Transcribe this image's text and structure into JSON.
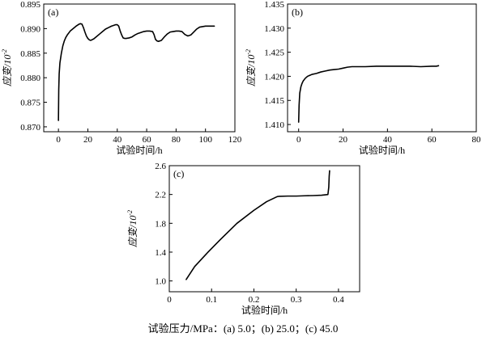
{
  "caption": "试验压力/MPa：(a) 5.0；(b) 25.0；(c) 45.0",
  "chart_data": [
    {
      "panel": "(a)",
      "type": "line",
      "xlabel": "试验时间/h",
      "ylabel": "应变/10",
      "ylabel_sup": "-2",
      "xlim": [
        -10,
        120
      ],
      "ylim": [
        0.869,
        0.895
      ],
      "xticks": [
        0,
        20,
        40,
        60,
        80,
        100,
        120
      ],
      "yticks": [
        0.87,
        0.875,
        0.88,
        0.885,
        0.89,
        0.895
      ],
      "ytick_decimals": 3,
      "grid": false,
      "series": [
        {
          "x": [
            0,
            0.2,
            0.5,
            1,
            2,
            3,
            4,
            5,
            6,
            8,
            10,
            12,
            14,
            15,
            16,
            17,
            18,
            19,
            20,
            21,
            22,
            24,
            26,
            28,
            30,
            32,
            34,
            36,
            38,
            39,
            40,
            41,
            42,
            43,
            44,
            45,
            46,
            48,
            50,
            52,
            54,
            56,
            58,
            60,
            62,
            64,
            65,
            66,
            67,
            68,
            70,
            72,
            74,
            76,
            78,
            80,
            82,
            84,
            86,
            88,
            90,
            92,
            94,
            96,
            98,
            100,
            102,
            104,
            106
          ],
          "y": [
            0.8713,
            0.8775,
            0.8808,
            0.883,
            0.885,
            0.8865,
            0.8875,
            0.8882,
            0.8887,
            0.8895,
            0.89,
            0.8905,
            0.8909,
            0.891,
            0.8909,
            0.8902,
            0.8893,
            0.8885,
            0.888,
            0.8877,
            0.8876,
            0.8879,
            0.8884,
            0.8889,
            0.8894,
            0.8899,
            0.8902,
            0.8905,
            0.8907,
            0.8908,
            0.8908,
            0.8905,
            0.8895,
            0.8887,
            0.8881,
            0.888,
            0.888,
            0.8881,
            0.8883,
            0.8887,
            0.889,
            0.8892,
            0.8894,
            0.8895,
            0.8895,
            0.8894,
            0.8888,
            0.8878,
            0.8875,
            0.8874,
            0.8876,
            0.8883,
            0.8889,
            0.8893,
            0.8894,
            0.8895,
            0.8895,
            0.8894,
            0.8888,
            0.8885,
            0.8887,
            0.8893,
            0.8899,
            0.8903,
            0.8904,
            0.8905,
            0.8905,
            0.8905,
            0.8905
          ]
        }
      ]
    },
    {
      "panel": "(b)",
      "type": "line",
      "xlabel": "试验时间/h",
      "ylabel": "应变/10",
      "ylabel_sup": "-2",
      "xlim": [
        -5,
        80
      ],
      "ylim": [
        1.4085,
        1.435
      ],
      "xticks": [
        0,
        20,
        40,
        60,
        80
      ],
      "yticks": [
        1.41,
        1.415,
        1.42,
        1.425,
        1.43,
        1.435
      ],
      "ytick_decimals": 3,
      "grid": false,
      "series": [
        {
          "x": [
            0,
            0.2,
            0.5,
            1,
            1.5,
            2,
            3,
            4,
            5,
            6,
            8,
            10,
            12,
            14,
            16,
            18,
            20,
            22,
            24,
            26,
            30,
            35,
            40,
            45,
            50,
            55,
            60,
            62,
            63
          ],
          "y": [
            1.4105,
            1.414,
            1.4165,
            1.4178,
            1.4185,
            1.419,
            1.4196,
            1.42,
            1.4202,
            1.4204,
            1.4206,
            1.4209,
            1.4211,
            1.4213,
            1.4214,
            1.4215,
            1.4217,
            1.4219,
            1.422,
            1.422,
            1.422,
            1.4221,
            1.4221,
            1.4221,
            1.4221,
            1.422,
            1.4221,
            1.4221,
            1.4222
          ]
        }
      ]
    },
    {
      "panel": "(c)",
      "type": "line",
      "xlabel": "试验时间/h",
      "ylabel": "应变/10",
      "ylabel_sup": "-2",
      "xlim": [
        0,
        0.45
      ],
      "ylim": [
        0.85,
        2.6
      ],
      "xticks": [
        0,
        0.1,
        0.2,
        0.3,
        0.4
      ],
      "xtick_labels": [
        "0",
        "0.1",
        "0.2",
        "0.3",
        "0.4"
      ],
      "yticks": [
        1.0,
        1.4,
        1.8,
        2.2,
        2.6
      ],
      "ytick_decimals": 1,
      "grid": false,
      "series": [
        {
          "x": [
            0.04,
            0.06,
            0.09,
            0.12,
            0.16,
            0.2,
            0.23,
            0.255,
            0.26,
            0.28,
            0.3,
            0.32,
            0.34,
            0.36,
            0.375,
            0.377,
            0.378,
            0.379
          ],
          "y": [
            1.02,
            1.2,
            1.39,
            1.57,
            1.8,
            1.98,
            2.1,
            2.17,
            2.175,
            2.178,
            2.178,
            2.182,
            2.185,
            2.19,
            2.2,
            2.3,
            2.45,
            2.53
          ]
        }
      ]
    }
  ]
}
